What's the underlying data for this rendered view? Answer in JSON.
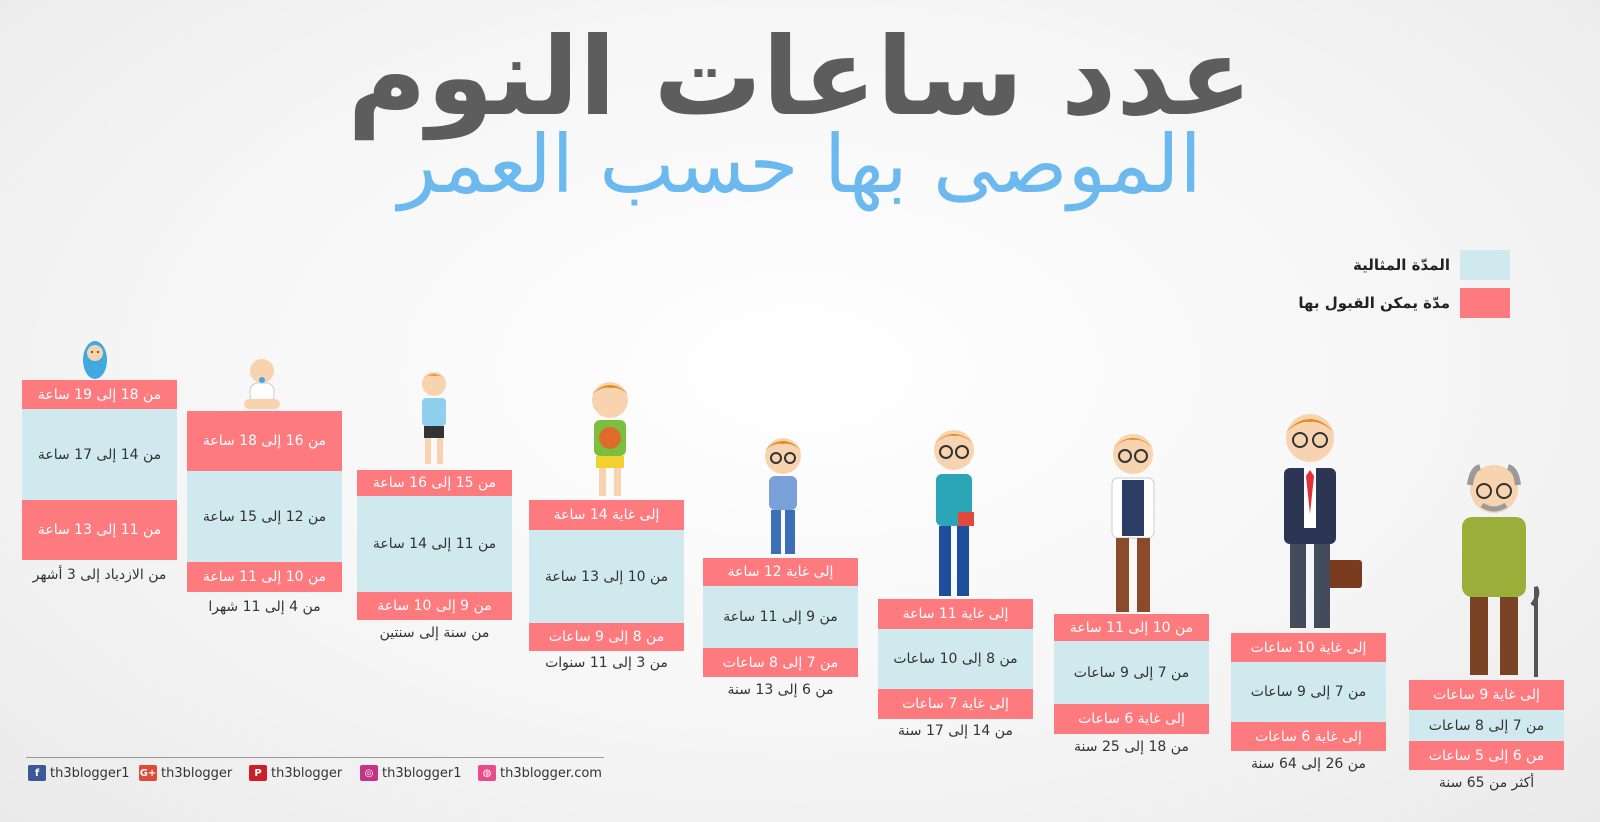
{
  "title": "عدد ساعات النوم",
  "subtitle": "الموصى بها حسب العمر",
  "legend": [
    {
      "label": "المدّة المثالية",
      "color": "#cfe9ee"
    },
    {
      "label": "مدّة يمكن القبول بها",
      "color": "#fd7b7e"
    }
  ],
  "columns": [
    {
      "top": "من 18 إلى 19 ساعة",
      "mid": "من 14 إلى 17 ساعة",
      "bottom": "من 11 إلى 13 ساعة",
      "age": "من الازدياد إلى 3 أشهر"
    },
    {
      "top": "من 16 إلى 18 ساعة",
      "mid": "من 12 إلى 15 ساعة",
      "bottom": "من 10 إلى 11 ساعة",
      "age": "من 4 إلى 11 شهرا"
    },
    {
      "top": "من 15 إلى 16 ساعة",
      "mid": "من 11 إلى 14 ساعة",
      "bottom": "من 9 إلى 10 ساعة",
      "age": "من سنة إلى سنتين"
    },
    {
      "top": "إلى غاية 14 ساعة",
      "mid": "من 10 إلى 13 ساعة",
      "bottom": "من 8 إلى 9 ساعات",
      "age": "من 3 إلى 11 سنوات"
    },
    {
      "top": "إلى غاية 12 ساعة",
      "mid": "من 9 إلى 11 ساعة",
      "bottom": "من 7 إلى 8 ساعات",
      "age": "من 6 إلى 13 سنة"
    },
    {
      "top": "إلى غاية 11 ساعة",
      "mid": "من 8 إلى 10 ساعات",
      "bottom": "إلى غاية 7 ساعات",
      "age": "من 14 إلى 17 سنة"
    },
    {
      "top": "من 10 إلى 11 ساعة",
      "mid": "من 7 إلى 9 ساعات",
      "bottom": "إلى غاية 6 ساعات",
      "age": "من 18 إلى 25 سنة"
    },
    {
      "top": "إلى غاية 10 ساعات",
      "mid": "من 7 إلى 9 ساعات",
      "bottom": "إلى غاية 6 ساعات",
      "age": "من 26 إلى 64 سنة"
    },
    {
      "top": "إلى غاية 9 ساعات",
      "mid": "من 7 إلى 8 ساعات",
      "bottom": "من 6 إلى 5 ساعات",
      "age": "أكثر من 65 سنة"
    }
  ],
  "footer": [
    {
      "icon": "facebook-icon",
      "text": "th3blogger1",
      "color": "#3b5998",
      "glyph": "f"
    },
    {
      "icon": "google-plus-icon",
      "text": "th3blogger",
      "color": "#dd4b39",
      "glyph": "G+"
    },
    {
      "icon": "pinterest-icon",
      "text": "th3blogger",
      "color": "#cb2027",
      "glyph": "P"
    },
    {
      "icon": "instagram-icon",
      "text": "th3blogger1",
      "color": "#c13584",
      "glyph": "◎"
    },
    {
      "icon": "dribbble-icon",
      "text": "th3blogger.com",
      "color": "#ea4c89",
      "glyph": "◍"
    }
  ]
}
